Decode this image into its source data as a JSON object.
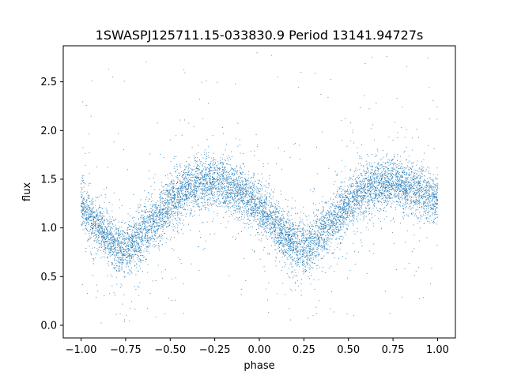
{
  "chart_data": {
    "type": "scatter",
    "title": "1SWASPJ125711.15-033830.9 Period 13141.94727s",
    "xlabel": "phase",
    "ylabel": "flux",
    "xlim": [
      -1.1,
      1.1
    ],
    "ylim": [
      -0.13,
      2.87
    ],
    "xticks": [
      -1.0,
      -0.75,
      -0.5,
      -0.25,
      0.0,
      0.25,
      0.5,
      0.75,
      1.0
    ],
    "xtick_labels": [
      "−1.00",
      "−0.75",
      "−0.50",
      "−0.25",
      "0.00",
      "0.25",
      "0.50",
      "0.75",
      "1.00"
    ],
    "yticks": [
      0.0,
      0.5,
      1.0,
      1.5,
      2.0,
      2.5
    ],
    "ytick_labels": [
      "0.0",
      "0.5",
      "1.0",
      "1.5",
      "2.0",
      "2.5"
    ],
    "x_range": [
      -1.0,
      1.0
    ],
    "grid": false,
    "marker_color": "#1f77b4",
    "series": [
      {
        "x": [
          -1.0,
          -0.9,
          -0.8,
          -0.75,
          -0.7,
          -0.6,
          -0.5,
          -0.4,
          -0.3,
          -0.25,
          -0.2,
          -0.1,
          0.0,
          0.1,
          0.2,
          0.25,
          0.3,
          0.4,
          0.5,
          0.6,
          0.7,
          0.75,
          0.8,
          0.9,
          1.0
        ],
        "y": [
          1.25,
          1.0,
          0.8,
          0.78,
          0.85,
          1.05,
          1.25,
          1.4,
          1.47,
          1.47,
          1.45,
          1.35,
          1.22,
          1.0,
          0.82,
          0.78,
          0.85,
          1.05,
          1.25,
          1.4,
          1.47,
          1.48,
          1.45,
          1.38,
          1.3
        ]
      }
    ]
  }
}
